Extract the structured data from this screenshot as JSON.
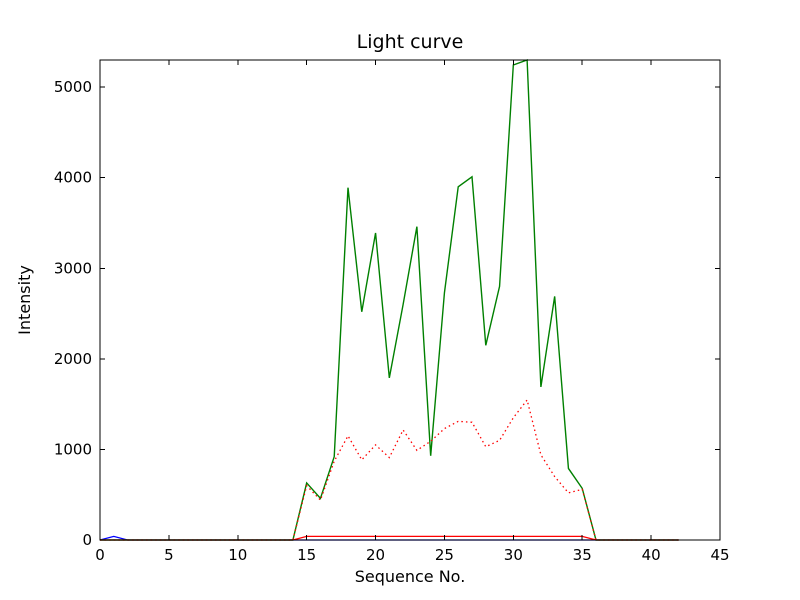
{
  "figure": {
    "background": "#ffffff",
    "frame_color": "#000000"
  },
  "chart_data": {
    "type": "line",
    "title": "Light curve",
    "xlabel": "Sequence No.",
    "ylabel": "Intensity",
    "xlim": [
      0,
      45
    ],
    "ylim": [
      0,
      5300
    ],
    "xticks": [
      0,
      5,
      10,
      15,
      20,
      25,
      30,
      35,
      40,
      45
    ],
    "yticks": [
      0,
      1000,
      2000,
      3000,
      4000,
      5000
    ],
    "grid": false,
    "legend": "none",
    "x": [
      0,
      1,
      2,
      3,
      4,
      5,
      6,
      7,
      8,
      9,
      10,
      11,
      12,
      13,
      14,
      15,
      16,
      17,
      18,
      19,
      20,
      21,
      22,
      23,
      24,
      25,
      26,
      27,
      28,
      29,
      30,
      31,
      32,
      33,
      34,
      35,
      36,
      37,
      38,
      39,
      40,
      41,
      42
    ],
    "series": [
      {
        "name": "blue-series",
        "color": "#0000ff",
        "style": "solid",
        "width": 1.2,
        "y": [
          0,
          40,
          0,
          0,
          0,
          0,
          0,
          0,
          0,
          0,
          0,
          0,
          0,
          0,
          0,
          0,
          0,
          0,
          0,
          0,
          0,
          0,
          0,
          0,
          0,
          0,
          0,
          0,
          0,
          0,
          0,
          0,
          0,
          0,
          0,
          0,
          0,
          0,
          0,
          0,
          0,
          0,
          0
        ]
      },
      {
        "name": "green-series",
        "color": "#008000",
        "style": "solid",
        "width": 1.4,
        "y": [
          0,
          0,
          0,
          0,
          0,
          0,
          0,
          0,
          0,
          0,
          0,
          0,
          0,
          0,
          0,
          630,
          460,
          920,
          3890,
          2520,
          3390,
          1790,
          2600,
          3460,
          930,
          2730,
          3900,
          4010,
          2150,
          2800,
          5245,
          5300,
          1690,
          2690,
          790,
          570,
          0,
          0,
          0,
          0,
          0,
          0,
          0
        ]
      },
      {
        "name": "red-dotted-series",
        "color": "#ff0000",
        "style": "dotted",
        "width": 1.3,
        "y": [
          0,
          0,
          0,
          0,
          0,
          0,
          0,
          0,
          0,
          0,
          0,
          0,
          0,
          0,
          0,
          600,
          440,
          870,
          1150,
          885,
          1050,
          910,
          1215,
          990,
          1090,
          1230,
          1310,
          1300,
          1030,
          1100,
          1350,
          1546,
          940,
          700,
          520,
          560,
          0,
          0,
          0,
          0,
          0,
          0,
          0
        ]
      },
      {
        "name": "red-solid-series",
        "color": "#ff0000",
        "style": "solid",
        "width": 1.2,
        "y": [
          0,
          0,
          0,
          0,
          0,
          0,
          0,
          0,
          0,
          0,
          0,
          0,
          0,
          0,
          0,
          40,
          40,
          40,
          40,
          40,
          40,
          40,
          40,
          40,
          40,
          40,
          40,
          40,
          40,
          40,
          40,
          40,
          40,
          40,
          40,
          40,
          0,
          0,
          0,
          0,
          0,
          0,
          0
        ]
      }
    ]
  }
}
